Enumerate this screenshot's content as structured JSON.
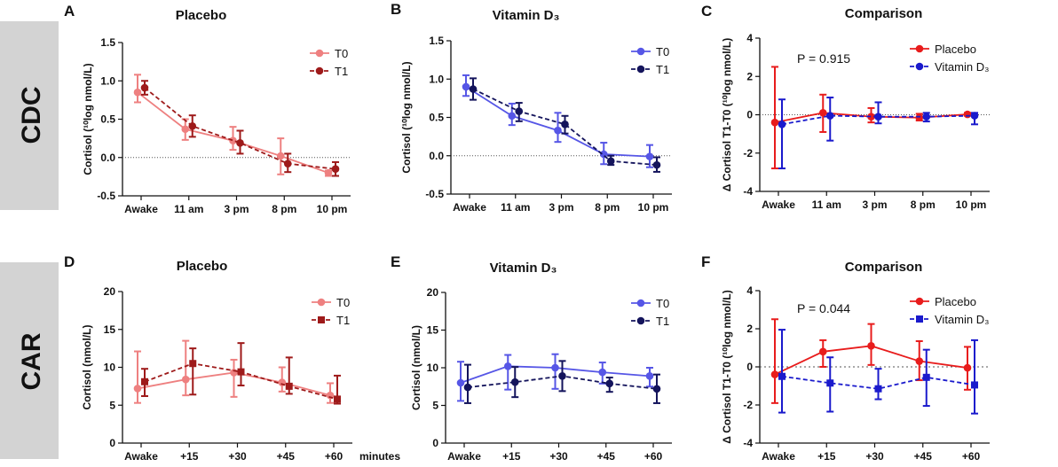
{
  "row_labels": [
    "CDC",
    "CAR"
  ],
  "chart_data": [
    {
      "panel": "A",
      "type": "line",
      "title": "Placebo",
      "ylabel": "Cortisol (¹⁰log nmol/L)",
      "categories": [
        "Awake",
        "11 am",
        "3 pm",
        "8 pm",
        "10 pm"
      ],
      "ylim": [
        -0.5,
        1.5
      ],
      "yticks": [
        "-0.5",
        "0.0",
        "0.5",
        "1.0",
        "1.5"
      ],
      "legend_position": "top-right",
      "zero_line": true,
      "series": [
        {
          "name": "T0",
          "color": "#ee8080",
          "dashed": false,
          "marker": "circle",
          "values": [
            0.85,
            0.37,
            0.22,
            0.02,
            -0.2
          ],
          "err_low": [
            0.72,
            0.23,
            0.1,
            -0.22,
            -0.24
          ],
          "err_high": [
            1.08,
            0.5,
            0.4,
            0.25,
            -0.17
          ]
        },
        {
          "name": "T1",
          "color": "#9e1a1a",
          "dashed": true,
          "marker": "circle",
          "values": [
            0.91,
            0.41,
            0.19,
            -0.08,
            -0.15
          ],
          "err_low": [
            0.82,
            0.27,
            0.05,
            -0.19,
            -0.24
          ],
          "err_high": [
            1.0,
            0.55,
            0.35,
            0.05,
            -0.06
          ]
        }
      ]
    },
    {
      "panel": "B",
      "type": "line",
      "title": "Vitamin D₃",
      "ylabel": "Cortisol (¹⁰log nmol/L)",
      "categories": [
        "Awake",
        "11 am",
        "3 pm",
        "8 pm",
        "10 pm"
      ],
      "ylim": [
        -0.5,
        1.5
      ],
      "yticks": [
        "-0.5",
        "0.0",
        "0.5",
        "1.0",
        "1.5"
      ],
      "legend_position": "top-right",
      "zero_line": true,
      "series": [
        {
          "name": "T0",
          "color": "#5656e6",
          "dashed": false,
          "marker": "circle",
          "values": [
            0.9,
            0.52,
            0.33,
            0.02,
            -0.01
          ],
          "err_low": [
            0.78,
            0.4,
            0.18,
            -0.11,
            -0.15
          ],
          "err_high": [
            1.05,
            0.68,
            0.56,
            0.17,
            0.14
          ]
        },
        {
          "name": "T1",
          "color": "#14145c",
          "dashed": true,
          "marker": "circle",
          "values": [
            0.87,
            0.58,
            0.41,
            -0.07,
            -0.12
          ],
          "err_low": [
            0.73,
            0.45,
            0.29,
            -0.12,
            -0.21
          ],
          "err_high": [
            1.01,
            0.69,
            0.52,
            0.0,
            -0.02
          ]
        }
      ]
    },
    {
      "panel": "C",
      "type": "line",
      "title": "Comparison",
      "ylabel": "Δ Cortisol T1-T0 (¹⁰log nmol/L)",
      "categories": [
        "Awake",
        "11 am",
        "3 pm",
        "8 pm",
        "10 pm"
      ],
      "ylim": [
        -4,
        4
      ],
      "yticks": [
        "-4",
        "-2",
        "0",
        "2",
        "4"
      ],
      "legend_position": "top-right",
      "zero_line": true,
      "annotation": "P = 0.915",
      "series": [
        {
          "name": "Placebo",
          "color": "#e81c1c",
          "dashed": false,
          "marker": "circle",
          "values": [
            -0.4,
            0.1,
            -0.1,
            -0.15,
            0.02
          ],
          "err_low": [
            -2.8,
            -0.9,
            -0.4,
            -0.3,
            -0.05
          ],
          "err_high": [
            2.5,
            1.05,
            0.35,
            0.05,
            0.1
          ]
        },
        {
          "name": "Vitamin D₃",
          "color": "#1a1acc",
          "dashed": true,
          "marker": "circle",
          "values": [
            -0.5,
            -0.05,
            -0.1,
            -0.1,
            -0.05
          ],
          "err_low": [
            -2.8,
            -1.35,
            -0.45,
            -0.35,
            -0.5
          ],
          "err_high": [
            0.8,
            0.9,
            0.65,
            0.1,
            0.1
          ]
        }
      ]
    },
    {
      "panel": "D",
      "type": "line",
      "title": "Placebo",
      "ylabel": "Cortisol (nmol/L)",
      "categories": [
        "Awake",
        "+15",
        "+30",
        "+45",
        "+60"
      ],
      "xunit": "minutes",
      "ylim": [
        0,
        20
      ],
      "yticks": [
        "0",
        "5",
        "10",
        "15",
        "20"
      ],
      "legend_position": "top-right",
      "zero_line": false,
      "series": [
        {
          "name": "T0",
          "color": "#ee8080",
          "dashed": false,
          "marker": "circle",
          "values": [
            7.2,
            8.4,
            9.3,
            8.0,
            6.3
          ],
          "err_low": [
            5.3,
            6.3,
            6.1,
            6.8,
            5.3
          ],
          "err_high": [
            12.1,
            13.5,
            11.0,
            10.0,
            7.9
          ]
        },
        {
          "name": "T1",
          "color": "#9e1a1a",
          "dashed": true,
          "marker": "square",
          "values": [
            8.1,
            10.5,
            9.4,
            7.5,
            5.8
          ],
          "err_low": [
            6.2,
            6.4,
            7.6,
            6.5,
            5.2
          ],
          "err_high": [
            9.8,
            12.5,
            13.2,
            11.3,
            8.9
          ]
        }
      ]
    },
    {
      "panel": "E",
      "type": "line",
      "title": "Vitamin D₃",
      "ylabel": "Cortisol (nmol/L)",
      "categories": [
        "Awake",
        "+15",
        "+30",
        "+45",
        "+60"
      ],
      "ylim": [
        0,
        20
      ],
      "yticks": [
        "0",
        "5",
        "10",
        "15",
        "20"
      ],
      "legend_position": "top-right",
      "zero_line": false,
      "series": [
        {
          "name": "T0",
          "color": "#5656e6",
          "dashed": false,
          "marker": "circle",
          "values": [
            8.0,
            10.2,
            10.0,
            9.4,
            8.9
          ],
          "err_low": [
            5.6,
            7.1,
            7.2,
            7.9,
            7.5
          ],
          "err_high": [
            10.8,
            11.7,
            11.8,
            10.7,
            10.0
          ]
        },
        {
          "name": "T1",
          "color": "#14145c",
          "dashed": true,
          "marker": "circle",
          "values": [
            7.4,
            8.1,
            8.9,
            7.9,
            7.2
          ],
          "err_low": [
            5.3,
            6.1,
            6.9,
            6.8,
            5.3
          ],
          "err_high": [
            10.4,
            10.1,
            10.9,
            8.7,
            9.1
          ]
        }
      ]
    },
    {
      "panel": "F",
      "type": "line",
      "title": "Comparison",
      "ylabel": "Δ Cortisol T1-T0 (¹⁰log nmol/L)",
      "categories": [
        "Awake",
        "+15",
        "+30",
        "+45",
        "+60"
      ],
      "ylim": [
        -4,
        4
      ],
      "yticks": [
        "-4",
        "-2",
        "0",
        "2",
        "4"
      ],
      "legend_position": "top-right",
      "zero_line": true,
      "annotation": "P = 0.044",
      "series": [
        {
          "name": "Placebo",
          "color": "#e81c1c",
          "dashed": false,
          "marker": "circle",
          "values": [
            -0.4,
            0.8,
            1.1,
            0.3,
            -0.05
          ],
          "err_low": [
            -1.9,
            0.0,
            0.1,
            -0.7,
            -1.2
          ],
          "err_high": [
            2.5,
            1.4,
            2.25,
            1.35,
            1.05
          ]
        },
        {
          "name": "Vitamin D₃",
          "color": "#1a1acc",
          "dashed": true,
          "marker": "square",
          "values": [
            -0.5,
            -0.85,
            -1.15,
            -0.55,
            -0.95
          ],
          "err_low": [
            -2.4,
            -2.35,
            -1.7,
            -2.05,
            -2.45
          ],
          "err_high": [
            1.95,
            0.5,
            -0.1,
            0.9,
            1.4
          ]
        }
      ]
    }
  ]
}
